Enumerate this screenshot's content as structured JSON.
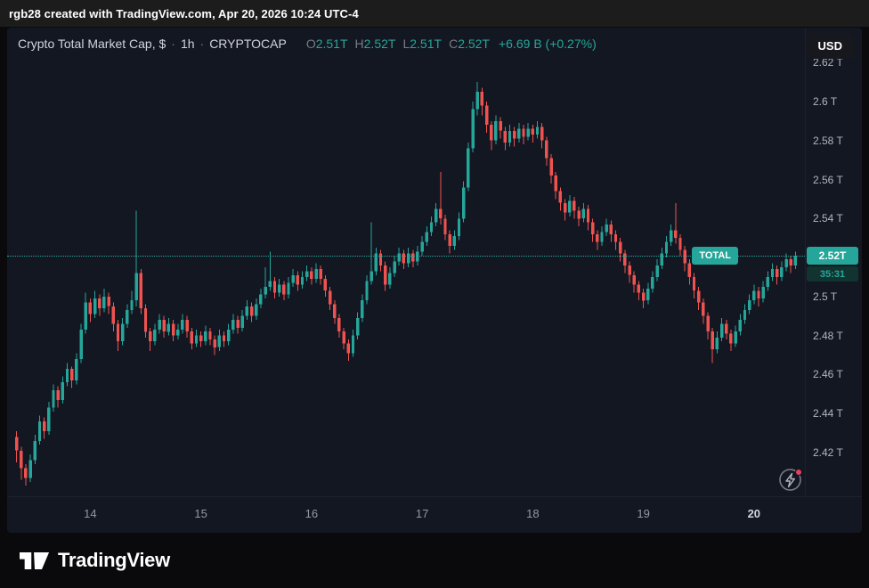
{
  "export_bar": {
    "text": "rgb28 created with TradingView.com, Apr 20, 2026 10:24 UTC-4"
  },
  "currency_button": {
    "label": "USD"
  },
  "legend": {
    "title": "Crypto Total Market Cap, $",
    "sep": "·",
    "interval": "1h",
    "symbol": "CRYPTOCAP",
    "o_label": "O",
    "o_value": "2.51T",
    "h_label": "H",
    "h_value": "2.52T",
    "l_label": "L",
    "l_value": "2.51T",
    "c_label": "C",
    "c_value": "2.52T",
    "change": "+6.69 B (+0.27%)"
  },
  "price_line": {
    "symbol_label": "TOTAL",
    "price_label": "2.52T",
    "countdown": "35:31",
    "price": 2.521
  },
  "footer": {
    "brand": "TradingView"
  },
  "colors": {
    "up": "#26a69a",
    "down": "#ef5350",
    "accent": "#26a69a",
    "axis_text": "#b2b5be",
    "panel_bg": "#131722"
  },
  "chart_data": {
    "type": "candlestick",
    "title": "Crypto Total Market Cap, $ · 1h · CRYPTOCAP",
    "units": "T (trillions USD)",
    "ylim": [
      2.3985,
      2.6379
    ],
    "grid": false,
    "y_ticks": [
      "2.62 T",
      "2.6 T",
      "2.58 T",
      "2.56 T",
      "2.54 T",
      "2.52 T",
      "2.5 T",
      "2.48 T",
      "2.46 T",
      "2.44 T",
      "2.42 T"
    ],
    "y_tick_values": [
      2.62,
      2.6,
      2.58,
      2.56,
      2.54,
      2.52,
      2.5,
      2.48,
      2.46,
      2.44,
      2.42
    ],
    "x_ticks": [
      {
        "label": "14",
        "index": 16
      },
      {
        "label": "15",
        "index": 40
      },
      {
        "label": "16",
        "index": 64
      },
      {
        "label": "17",
        "index": 88
      },
      {
        "label": "18",
        "index": 112
      },
      {
        "label": "19",
        "index": 136
      },
      {
        "label": "20",
        "index": 160,
        "bold": true
      }
    ],
    "last_price": 2.521,
    "candles": [
      [
        2.428,
        2.431,
        2.415,
        2.421
      ],
      [
        2.421,
        2.423,
        2.406,
        2.412
      ],
      [
        2.412,
        2.414,
        2.403,
        2.407
      ],
      [
        2.407,
        2.419,
        2.405,
        2.416
      ],
      [
        2.416,
        2.429,
        2.414,
        2.426
      ],
      [
        2.426,
        2.439,
        2.424,
        2.436
      ],
      [
        2.436,
        2.438,
        2.427,
        2.431
      ],
      [
        2.431,
        2.446,
        2.429,
        2.443
      ],
      [
        2.443,
        2.455,
        2.441,
        2.452
      ],
      [
        2.452,
        2.454,
        2.443,
        2.447
      ],
      [
        2.447,
        2.459,
        2.445,
        2.456
      ],
      [
        2.456,
        2.466,
        2.454,
        2.463
      ],
      [
        2.463,
        2.464,
        2.453,
        2.457
      ],
      [
        2.457,
        2.471,
        2.455,
        2.468
      ],
      [
        2.468,
        2.486,
        2.466,
        2.483
      ],
      [
        2.483,
        2.502,
        2.481,
        2.497
      ],
      [
        2.497,
        2.499,
        2.487,
        2.491
      ],
      [
        2.491,
        2.503,
        2.489,
        2.499
      ],
      [
        2.499,
        2.501,
        2.49,
        2.494
      ],
      [
        2.494,
        2.504,
        2.492,
        2.5
      ],
      [
        2.5,
        2.502,
        2.491,
        2.495
      ],
      [
        2.495,
        2.497,
        2.482,
        2.486
      ],
      [
        2.486,
        2.488,
        2.472,
        2.477
      ],
      [
        2.477,
        2.489,
        2.475,
        2.486
      ],
      [
        2.486,
        2.496,
        2.484,
        2.493
      ],
      [
        2.493,
        2.503,
        2.491,
        2.498
      ],
      [
        2.498,
        2.544,
        2.495,
        2.512
      ],
      [
        2.512,
        2.514,
        2.491,
        2.494
      ],
      [
        2.494,
        2.496,
        2.479,
        2.482
      ],
      [
        2.482,
        2.484,
        2.472,
        2.477
      ],
      [
        2.477,
        2.486,
        2.475,
        2.483
      ],
      [
        2.483,
        2.491,
        2.481,
        2.488
      ],
      [
        2.488,
        2.49,
        2.479,
        2.482
      ],
      [
        2.482,
        2.489,
        2.48,
        2.486
      ],
      [
        2.486,
        2.488,
        2.477,
        2.48
      ],
      [
        2.48,
        2.486,
        2.478,
        2.483
      ],
      [
        2.483,
        2.491,
        2.481,
        2.488
      ],
      [
        2.488,
        2.49,
        2.479,
        2.482
      ],
      [
        2.482,
        2.484,
        2.473,
        2.476
      ],
      [
        2.476,
        2.483,
        2.474,
        2.48
      ],
      [
        2.48,
        2.482,
        2.474,
        2.477
      ],
      [
        2.477,
        2.485,
        2.475,
        2.482
      ],
      [
        2.482,
        2.484,
        2.475,
        2.478
      ],
      [
        2.478,
        2.48,
        2.47,
        2.474
      ],
      [
        2.474,
        2.483,
        2.472,
        2.48
      ],
      [
        2.48,
        2.482,
        2.474,
        2.477
      ],
      [
        2.477,
        2.486,
        2.475,
        2.483
      ],
      [
        2.483,
        2.491,
        2.481,
        2.488
      ],
      [
        2.488,
        2.49,
        2.481,
        2.484
      ],
      [
        2.484,
        2.493,
        2.482,
        2.49
      ],
      [
        2.49,
        2.498,
        2.488,
        2.495
      ],
      [
        2.495,
        2.497,
        2.487,
        2.49
      ],
      [
        2.49,
        2.499,
        2.488,
        2.496
      ],
      [
        2.496,
        2.504,
        2.494,
        2.501
      ],
      [
        2.501,
        2.515,
        2.499,
        2.505
      ],
      [
        2.505,
        2.523,
        2.503,
        2.508
      ],
      [
        2.508,
        2.51,
        2.499,
        2.502
      ],
      [
        2.502,
        2.509,
        2.5,
        2.506
      ],
      [
        2.506,
        2.508,
        2.498,
        2.501
      ],
      [
        2.501,
        2.51,
        2.499,
        2.507
      ],
      [
        2.507,
        2.514,
        2.505,
        2.511
      ],
      [
        2.511,
        2.513,
        2.503,
        2.506
      ],
      [
        2.506,
        2.513,
        2.504,
        2.51
      ],
      [
        2.51,
        2.516,
        2.508,
        2.513
      ],
      [
        2.513,
        2.515,
        2.506,
        2.509
      ],
      [
        2.509,
        2.517,
        2.507,
        2.514
      ],
      [
        2.514,
        2.516,
        2.506,
        2.509
      ],
      [
        2.509,
        2.511,
        2.5,
        2.503
      ],
      [
        2.503,
        2.505,
        2.493,
        2.496
      ],
      [
        2.496,
        2.498,
        2.486,
        2.489
      ],
      [
        2.489,
        2.491,
        2.479,
        2.482
      ],
      [
        2.482,
        2.484,
        2.473,
        2.476
      ],
      [
        2.476,
        2.478,
        2.467,
        2.471
      ],
      [
        2.471,
        2.483,
        2.469,
        2.48
      ],
      [
        2.48,
        2.492,
        2.478,
        2.489
      ],
      [
        2.489,
        2.501,
        2.487,
        2.498
      ],
      [
        2.498,
        2.511,
        2.496,
        2.508
      ],
      [
        2.508,
        2.538,
        2.506,
        2.513
      ],
      [
        2.513,
        2.525,
        2.511,
        2.522
      ],
      [
        2.522,
        2.524,
        2.513,
        2.516
      ],
      [
        2.516,
        2.518,
        2.503,
        2.506
      ],
      [
        2.506,
        2.515,
        2.504,
        2.512
      ],
      [
        2.512,
        2.521,
        2.51,
        2.518
      ],
      [
        2.518,
        2.525,
        2.516,
        2.522
      ],
      [
        2.522,
        2.524,
        2.514,
        2.517
      ],
      [
        2.517,
        2.525,
        2.515,
        2.522
      ],
      [
        2.522,
        2.524,
        2.515,
        2.518
      ],
      [
        2.518,
        2.526,
        2.516,
        2.523
      ],
      [
        2.523,
        2.531,
        2.521,
        2.528
      ],
      [
        2.528,
        2.536,
        2.526,
        2.533
      ],
      [
        2.533,
        2.541,
        2.531,
        2.538
      ],
      [
        2.538,
        2.548,
        2.536,
        2.545
      ],
      [
        2.545,
        2.564,
        2.537,
        2.54
      ],
      [
        2.54,
        2.542,
        2.529,
        2.532
      ],
      [
        2.532,
        2.534,
        2.522,
        2.526
      ],
      [
        2.526,
        2.534,
        2.524,
        2.531
      ],
      [
        2.531,
        2.543,
        2.529,
        2.54
      ],
      [
        2.54,
        2.559,
        2.538,
        2.556
      ],
      [
        2.556,
        2.579,
        2.554,
        2.576
      ],
      [
        2.576,
        2.6,
        2.574,
        2.596
      ],
      [
        2.596,
        2.61,
        2.593,
        2.605
      ],
      [
        2.605,
        2.607,
        2.593,
        2.598
      ],
      [
        2.598,
        2.6,
        2.584,
        2.588
      ],
      [
        2.588,
        2.59,
        2.575,
        2.58
      ],
      [
        2.58,
        2.593,
        2.578,
        2.59
      ],
      [
        2.59,
        2.592,
        2.581,
        2.585
      ],
      [
        2.585,
        2.587,
        2.575,
        2.579
      ],
      [
        2.579,
        2.588,
        2.577,
        2.585
      ],
      [
        2.585,
        2.587,
        2.577,
        2.581
      ],
      [
        2.581,
        2.589,
        2.579,
        2.586
      ],
      [
        2.586,
        2.588,
        2.578,
        2.582
      ],
      [
        2.582,
        2.589,
        2.58,
        2.586
      ],
      [
        2.586,
        2.588,
        2.579,
        2.583
      ],
      [
        2.583,
        2.59,
        2.581,
        2.587
      ],
      [
        2.587,
        2.589,
        2.576,
        2.58
      ],
      [
        2.58,
        2.582,
        2.567,
        2.571
      ],
      [
        2.571,
        2.573,
        2.558,
        2.562
      ],
      [
        2.562,
        2.564,
        2.55,
        2.554
      ],
      [
        2.554,
        2.556,
        2.544,
        2.548
      ],
      [
        2.548,
        2.55,
        2.539,
        2.543
      ],
      [
        2.543,
        2.552,
        2.541,
        2.549
      ],
      [
        2.549,
        2.551,
        2.54,
        2.544
      ],
      [
        2.544,
        2.546,
        2.536,
        2.54
      ],
      [
        2.54,
        2.548,
        2.538,
        2.545
      ],
      [
        2.545,
        2.547,
        2.534,
        2.538
      ],
      [
        2.538,
        2.54,
        2.528,
        2.532
      ],
      [
        2.532,
        2.534,
        2.524,
        2.528
      ],
      [
        2.528,
        2.536,
        2.526,
        2.533
      ],
      [
        2.533,
        2.54,
        2.531,
        2.537
      ],
      [
        2.537,
        2.539,
        2.528,
        2.532
      ],
      [
        2.532,
        2.534,
        2.524,
        2.528
      ],
      [
        2.528,
        2.53,
        2.518,
        2.522
      ],
      [
        2.522,
        2.524,
        2.512,
        2.516
      ],
      [
        2.516,
        2.518,
        2.507,
        2.511
      ],
      [
        2.511,
        2.513,
        2.502,
        2.506
      ],
      [
        2.506,
        2.508,
        2.498,
        2.502
      ],
      [
        2.502,
        2.504,
        2.494,
        2.498
      ],
      [
        2.498,
        2.507,
        2.496,
        2.504
      ],
      [
        2.504,
        2.513,
        2.502,
        2.51
      ],
      [
        2.51,
        2.519,
        2.508,
        2.516
      ],
      [
        2.516,
        2.525,
        2.514,
        2.522
      ],
      [
        2.522,
        2.531,
        2.52,
        2.528
      ],
      [
        2.528,
        2.537,
        2.526,
        2.534
      ],
      [
        2.534,
        2.548,
        2.527,
        2.53
      ],
      [
        2.53,
        2.532,
        2.521,
        2.524
      ],
      [
        2.524,
        2.526,
        2.513,
        2.517
      ],
      [
        2.517,
        2.519,
        2.506,
        2.51
      ],
      [
        2.51,
        2.512,
        2.499,
        2.503
      ],
      [
        2.503,
        2.505,
        2.493,
        2.497
      ],
      [
        2.497,
        2.499,
        2.486,
        2.49
      ],
      [
        2.49,
        2.492,
        2.478,
        2.482
      ],
      [
        2.482,
        2.484,
        2.466,
        2.473
      ],
      [
        2.473,
        2.482,
        2.471,
        2.479
      ],
      [
        2.479,
        2.489,
        2.477,
        2.486
      ],
      [
        2.486,
        2.488,
        2.478,
        2.481
      ],
      [
        2.481,
        2.483,
        2.472,
        2.476
      ],
      [
        2.476,
        2.485,
        2.474,
        2.482
      ],
      [
        2.482,
        2.491,
        2.48,
        2.488
      ],
      [
        2.488,
        2.496,
        2.486,
        2.493
      ],
      [
        2.493,
        2.501,
        2.491,
        2.498
      ],
      [
        2.498,
        2.506,
        2.496,
        2.503
      ],
      [
        2.503,
        2.505,
        2.495,
        2.499
      ],
      [
        2.499,
        2.508,
        2.497,
        2.505
      ],
      [
        2.505,
        2.513,
        2.503,
        2.51
      ],
      [
        2.51,
        2.517,
        2.508,
        2.514
      ],
      [
        2.514,
        2.516,
        2.506,
        2.51
      ],
      [
        2.51,
        2.518,
        2.508,
        2.515
      ],
      [
        2.515,
        2.522,
        2.513,
        2.519
      ],
      [
        2.519,
        2.521,
        2.512,
        2.516
      ],
      [
        2.516,
        2.523,
        2.514,
        2.521
      ]
    ]
  }
}
